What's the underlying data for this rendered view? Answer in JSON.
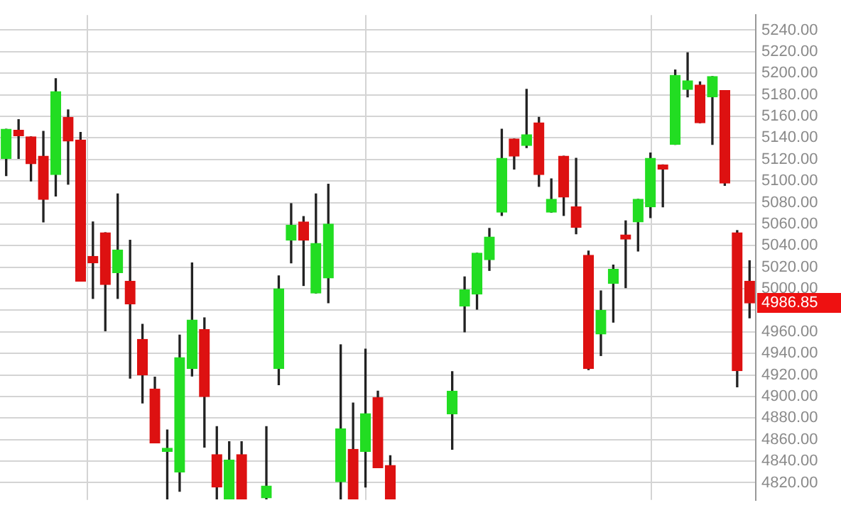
{
  "chart_data": {
    "type": "candlestick",
    "categories": [
      null,
      null,
      null,
      null,
      null,
      null,
      null,
      null,
      null,
      null,
      null,
      null,
      null,
      null,
      null,
      null,
      null,
      null,
      null,
      null,
      null,
      null,
      null,
      null,
      null,
      null,
      null,
      null,
      null,
      null,
      null,
      null,
      null,
      null,
      null,
      null,
      null,
      null,
      null,
      null,
      null,
      null,
      null,
      null,
      null,
      null,
      null,
      null,
      null,
      null,
      null,
      null,
      null,
      null,
      null,
      null,
      null,
      null,
      null,
      null,
      null
    ],
    "ohlc": [
      [
        5121,
        5148,
        5105,
        5148
      ],
      [
        5147,
        5157,
        5121,
        5142
      ],
      [
        5141,
        5141,
        5100,
        5116
      ],
      [
        5123,
        5146,
        5062,
        5083
      ],
      [
        5106,
        5195,
        5086,
        5183
      ],
      [
        5159,
        5166,
        5097,
        5137
      ],
      [
        5138,
        5145,
        5007,
        5007
      ],
      [
        5030,
        5062,
        4991,
        5024
      ],
      [
        5052,
        5052,
        4961,
        5004
      ],
      [
        5015,
        5088,
        4991,
        5036
      ],
      [
        5007,
        5045,
        4917,
        4986
      ],
      [
        4953,
        4967,
        4894,
        4920
      ],
      [
        4907,
        4918,
        4857,
        4857
      ],
      [
        4849,
        4869,
        4805,
        4852
      ],
      [
        4830,
        4957,
        4812,
        4936
      ],
      [
        4926,
        5024,
        4919,
        4971
      ],
      [
        4962,
        4973,
        4853,
        4900
      ],
      [
        4846,
        4872,
        4805,
        4816
      ],
      [
        4805,
        4858,
        4805,
        4841
      ],
      [
        4846,
        4858,
        4805,
        4805
      ],
      null,
      [
        4806,
        4872,
        4805,
        4817
      ],
      [
        4926,
        5012,
        4911,
        5000
      ],
      [
        5045,
        5079,
        5024,
        5059
      ],
      [
        5062,
        5067,
        5003,
        5045
      ],
      [
        4996,
        5088,
        4996,
        5042
      ],
      [
        5010,
        5097,
        4987,
        5060
      ],
      [
        4821,
        4948,
        4805,
        4870
      ],
      [
        4851,
        4894,
        4805,
        4805
      ],
      [
        4849,
        4944,
        4816,
        4884
      ],
      [
        4899,
        4905,
        4834,
        4834
      ],
      [
        4836,
        4845,
        4805,
        4805
      ],
      null,
      null,
      null,
      null,
      [
        4884,
        4923,
        4851,
        4905
      ],
      [
        4984,
        5011,
        4960,
        4999
      ],
      [
        4995,
        5033,
        4981,
        5033
      ],
      [
        5027,
        5056,
        5017,
        5048
      ],
      [
        5071,
        5148,
        5068,
        5121
      ],
      [
        5139,
        5139,
        5111,
        5123
      ],
      [
        5133,
        5185,
        5131,
        5143
      ],
      [
        5154,
        5159,
        5095,
        5106
      ],
      [
        5071,
        5102,
        5071,
        5083
      ],
      [
        5123,
        5123,
        5068,
        5085
      ],
      [
        5076,
        5121,
        5051,
        5057
      ],
      [
        5031,
        5035,
        4925,
        4926
      ],
      [
        4958,
        4998,
        4938,
        4980
      ],
      [
        5005,
        5022,
        4969,
        5018
      ],
      [
        5050,
        5063,
        5001,
        5046
      ],
      [
        5062,
        5083,
        5035,
        5083
      ],
      [
        5076,
        5126,
        5066,
        5121
      ],
      [
        5115,
        5115,
        5076,
        5111
      ],
      [
        5134,
        5203,
        5134,
        5198
      ],
      [
        5185,
        5219,
        5178,
        5193
      ],
      [
        5189,
        5192,
        5154,
        5154
      ],
      [
        5178,
        5197,
        5134,
        5197
      ],
      [
        5184,
        5184,
        5096,
        5098
      ],
      [
        5052,
        5054,
        4909,
        4924
      ],
      [
        5007,
        5026,
        4973,
        4986.85
      ]
    ],
    "colors": [
      "#22dd22",
      "#dd1111",
      "#dd1111",
      "#dd1111",
      "#22dd22",
      "#dd1111",
      "#dd1111",
      "#dd1111",
      "#dd1111",
      "#22dd22",
      "#dd1111",
      "#dd1111",
      "#dd1111",
      "#22dd22",
      "#22dd22",
      "#22dd22",
      "#dd1111",
      "#dd1111",
      "#22dd22",
      "#dd1111",
      null,
      "#22dd22",
      "#22dd22",
      "#22dd22",
      "#dd1111",
      "#22dd22",
      "#22dd22",
      "#22dd22",
      "#dd1111",
      "#22dd22",
      "#dd1111",
      "#dd1111",
      null,
      null,
      null,
      null,
      "#22dd22",
      "#22dd22",
      "#22dd22",
      "#22dd22",
      "#22dd22",
      "#dd1111",
      "#22dd22",
      "#dd1111",
      "#22dd22",
      "#dd1111",
      "#dd1111",
      "#dd1111",
      "#22dd22",
      "#22dd22",
      "#dd1111",
      "#22dd22",
      "#22dd22",
      "#dd1111",
      "#22dd22",
      "#22dd22",
      "#dd1111",
      "#22dd22",
      "#dd1111",
      "#dd1111",
      "#dd1111"
    ],
    "ylim": [
      4804,
      5254
    ],
    "yticks": [
      {
        "value": 4820,
        "label": "4820.00"
      },
      {
        "value": 4840,
        "label": "4840.00"
      },
      {
        "value": 4860,
        "label": "4860.00"
      },
      {
        "value": 4880,
        "label": "4880.00"
      },
      {
        "value": 4900,
        "label": "4900.00"
      },
      {
        "value": 4920,
        "label": "4920.00"
      },
      {
        "value": 4940,
        "label": "4940.00"
      },
      {
        "value": 4960,
        "label": "4960.00"
      },
      {
        "value": 4980,
        "label": null
      },
      {
        "value": 5000,
        "label": "5000.00"
      },
      {
        "value": 5020,
        "label": "5020.00"
      },
      {
        "value": 5040,
        "label": "5040.00"
      },
      {
        "value": 5060,
        "label": "5060.00"
      },
      {
        "value": 5080,
        "label": "5080.00"
      },
      {
        "value": 5100,
        "label": "5100.00"
      },
      {
        "value": 5120,
        "label": "5120.00"
      },
      {
        "value": 5140,
        "label": "5140.00"
      },
      {
        "value": 5160,
        "label": "5160.00"
      },
      {
        "value": 5180,
        "label": "5180.00"
      },
      {
        "value": 5200,
        "label": "5200.00"
      },
      {
        "value": 5220,
        "label": "5220.00"
      },
      {
        "value": 5240,
        "label": "5240.00"
      }
    ],
    "grid": "y",
    "legend": false,
    "tick_labels": "y",
    "annotations": [
      "4986.85"
    ]
  }
}
